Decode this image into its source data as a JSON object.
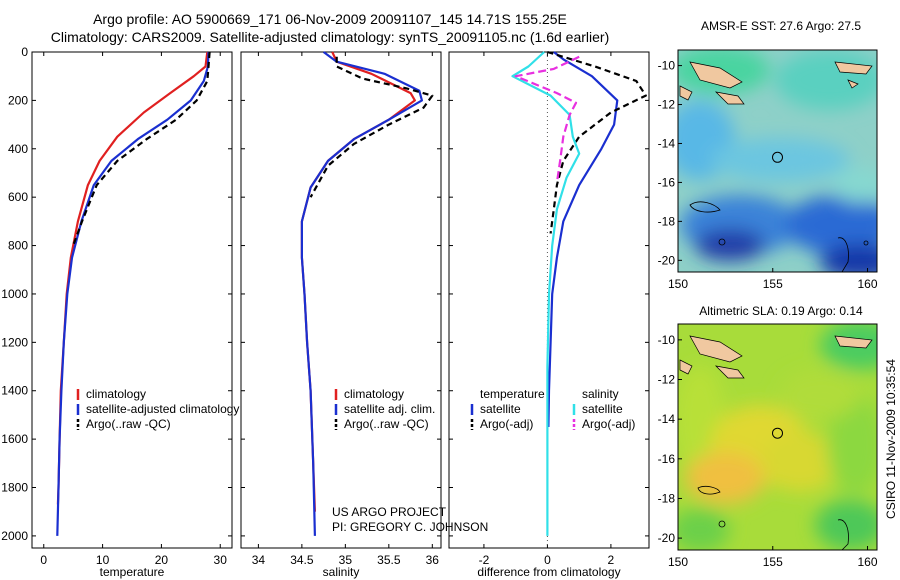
{
  "header": {
    "line1": "Argo profile: AO 5900669_171 06-Nov-2009 20091107_145 14.71S 155.25E",
    "line2": "Climatology: CARS2009. Satellite-adjusted climatology: synTS_20091105.nc (1.6d earlier)"
  },
  "credits": {
    "project": "US ARGO PROJECT",
    "pi": "PI: GREGORY C. JOHNSON",
    "stamp": "CSIRO 11-Nov-2009 10:35:54"
  },
  "colors": {
    "climatology": "#e02020",
    "satellite": "#1a2fd0",
    "argo": "#000000",
    "satellite_salinity": "#30e0e8",
    "argo_adj_salinity": "#e830e0",
    "zero_line": "#555555",
    "land": "#f0c8a0"
  },
  "chart_data": [
    {
      "type": "line",
      "name": "temperature-profile",
      "xlabel": "temperature",
      "ylabel": "",
      "xlim": [
        -2,
        32
      ],
      "ylim": [
        2050,
        0
      ],
      "xticks": [
        0,
        10,
        20,
        30
      ],
      "yticks": [
        0,
        200,
        400,
        600,
        800,
        1000,
        1200,
        1400,
        1600,
        1800,
        2000
      ],
      "legend": [
        "climatology",
        "satellite-adjusted climatology",
        "Argo(..raw -QC)"
      ],
      "series": [
        {
          "name": "climatology",
          "color": "#e02020",
          "dash": "",
          "x": [
            27.8,
            27.5,
            25.5,
            21.5,
            17.0,
            12.5,
            9.5,
            7.5,
            5.8,
            4.6,
            3.9,
            3.4,
            2.9,
            2.7,
            2.5,
            2.4
          ],
          "y": [
            0,
            60,
            100,
            170,
            250,
            350,
            450,
            550,
            700,
            850,
            1000,
            1200,
            1400,
            1600,
            1800,
            1870
          ]
        },
        {
          "name": "satellite-adjusted climatology",
          "color": "#1a2fd0",
          "dash": "",
          "x": [
            28.0,
            27.9,
            27.2,
            25.0,
            21.0,
            16.0,
            11.5,
            8.5,
            6.4,
            4.8,
            4.0,
            3.4,
            3.0,
            2.7,
            2.5,
            2.4,
            2.3
          ],
          "y": [
            0,
            60,
            120,
            200,
            280,
            360,
            450,
            550,
            700,
            850,
            1000,
            1200,
            1400,
            1600,
            1800,
            1900,
            2000
          ]
        },
        {
          "name": "Argo(..raw -QC)",
          "color": "#000000",
          "dash": "6,4",
          "x": [
            28.2,
            28.0,
            27.8,
            26.0,
            22.5,
            17.5,
            12.5,
            9.0,
            6.5,
            5.0
          ],
          "y": [
            0,
            60,
            120,
            200,
            280,
            360,
            450,
            550,
            700,
            800
          ]
        }
      ]
    },
    {
      "type": "line",
      "name": "salinity-profile",
      "xlabel": "salinity",
      "ylabel": "",
      "xlim": [
        33.8,
        36.1
      ],
      "ylim": [
        2050,
        0
      ],
      "xticks": [
        34,
        34.5,
        35,
        35.5,
        36
      ],
      "yticks": [
        0,
        200,
        400,
        600,
        800,
        1000,
        1200,
        1400,
        1600,
        1800,
        2000
      ],
      "legend": [
        "climatology",
        "satellite adj. clim.",
        "Argo(..raw -QC)"
      ],
      "series": [
        {
          "name": "climatology",
          "color": "#e02020",
          "dash": "",
          "x": [
            34.85,
            34.9,
            35.3,
            35.75,
            35.8,
            35.5,
            35.1,
            34.8,
            34.6,
            34.5,
            34.5,
            34.53,
            34.56,
            34.6,
            34.63,
            34.65
          ],
          "y": [
            0,
            40,
            90,
            170,
            200,
            280,
            360,
            450,
            560,
            700,
            850,
            1000,
            1200,
            1400,
            1700,
            1900
          ]
        },
        {
          "name": "satellite adj. clim.",
          "color": "#1a2fd0",
          "dash": "",
          "x": [
            34.75,
            34.9,
            35.45,
            35.85,
            35.88,
            35.5,
            35.1,
            34.8,
            34.6,
            34.5,
            34.5,
            34.53,
            34.56,
            34.6,
            34.63,
            34.65
          ],
          "y": [
            0,
            40,
            90,
            160,
            200,
            280,
            360,
            450,
            560,
            700,
            850,
            1000,
            1200,
            1400,
            1700,
            2000
          ]
        },
        {
          "name": "Argo(..raw -QC)",
          "color": "#000000",
          "dash": "6,4",
          "x": [
            34.9,
            34.9,
            35.2,
            35.7,
            36.0,
            35.9,
            35.5,
            35.1,
            34.8,
            34.6
          ],
          "y": [
            20,
            60,
            110,
            150,
            180,
            230,
            300,
            380,
            470,
            600
          ]
        }
      ]
    },
    {
      "type": "line",
      "name": "difference-profile",
      "xlabel": "difference from climatology",
      "ylabel": "",
      "xlim": [
        -3.1,
        3.2
      ],
      "ylim": [
        2050,
        0
      ],
      "xticks": [
        -2,
        0,
        2
      ],
      "yticks": [
        0,
        200,
        400,
        600,
        800,
        1000,
        1200,
        1400,
        1600,
        1800,
        2000
      ],
      "legend_heading_left": "temperature",
      "legend_heading_right": "salinity",
      "legend": [
        "satellite",
        "Argo(-adj)",
        "satellite",
        "Argo(-adj)"
      ],
      "series": [
        {
          "name": "temperature satellite",
          "color": "#1a2fd0",
          "dash": "",
          "x": [
            0.2,
            0.5,
            1.4,
            2.2,
            2.1,
            1.7,
            1.0,
            0.5,
            0.3,
            0.15,
            0.1,
            0.05,
            0.03
          ],
          "y": [
            0,
            30,
            100,
            200,
            300,
            400,
            550,
            700,
            850,
            1000,
            1200,
            1400,
            1550
          ]
        },
        {
          "name": "temperature Argo(-adj)",
          "color": "#000000",
          "dash": "6,4",
          "x": [
            0.0,
            1.5,
            2.8,
            3.1,
            2.0,
            1.0,
            0.5,
            0.3,
            0.2,
            0.1
          ],
          "y": [
            0,
            60,
            120,
            180,
            250,
            350,
            450,
            550,
            650,
            750
          ]
        },
        {
          "name": "salinity satellite",
          "color": "#30e0e8",
          "dash": "",
          "x": [
            -0.1,
            -0.6,
            -1.1,
            0.1,
            0.7,
            0.8,
            1.0,
            0.6,
            0.3,
            0.15,
            0.05,
            0.0,
            0.0
          ],
          "y": [
            0,
            60,
            100,
            180,
            260,
            350,
            420,
            520,
            650,
            800,
            1000,
            1300,
            2000
          ]
        },
        {
          "name": "salinity Argo(-adj)",
          "color": "#e830e0",
          "dash": "8,4",
          "x": [
            1.0,
            0.2,
            -1.0,
            0.3,
            0.9,
            0.7,
            0.5,
            0.4,
            0.3
          ],
          "y": [
            20,
            70,
            100,
            170,
            210,
            260,
            350,
            450,
            540
          ]
        }
      ]
    },
    {
      "type": "heatmap",
      "name": "sst-map",
      "title": "AMSR-E SST: 27.6 Argo: 27.5",
      "xlim": [
        150,
        160.5
      ],
      "ylim": [
        -20.6,
        -9.2
      ],
      "xticks": [
        150,
        155,
        160
      ],
      "yticks": [
        -10,
        -12,
        -14,
        -16,
        -18,
        -20
      ],
      "float_position": {
        "lon": 155.25,
        "lat": -14.71
      }
    },
    {
      "type": "heatmap",
      "name": "sla-map",
      "title": "Altimetric SLA: 0.19 Argo: 0.14",
      "xlim": [
        150,
        160.5
      ],
      "ylim": [
        -20.6,
        -9.2
      ],
      "xticks": [
        150,
        155,
        160
      ],
      "yticks": [
        -10,
        -12,
        -14,
        -16,
        -18,
        -20
      ],
      "float_position": {
        "lon": 155.25,
        "lat": -14.71
      }
    }
  ]
}
